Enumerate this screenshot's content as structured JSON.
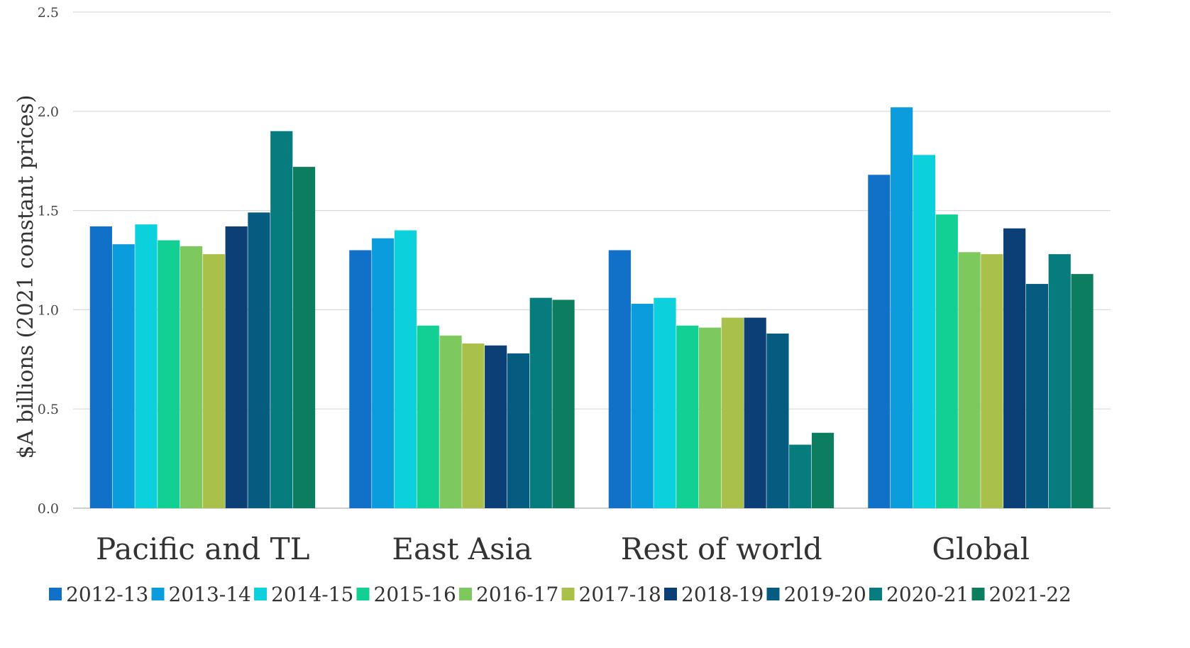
{
  "chart_data": {
    "type": "bar",
    "title": "",
    "xlabel": "",
    "ylabel": "$A billions (2021 constant prices)",
    "ylim": [
      0,
      2.5
    ],
    "yticks": [
      "0.0",
      "0.5",
      "1.0",
      "1.5",
      "2.0",
      "2.5"
    ],
    "grid": true,
    "legend_position": "bottom",
    "categories": [
      "Pacific and TL",
      "East Asia",
      "Rest of world",
      "Global"
    ],
    "series": [
      {
        "name": "2012-13",
        "color": "#1170c8",
        "values": [
          1.42,
          1.3,
          1.3,
          1.68
        ]
      },
      {
        "name": "2013-14",
        "color": "#0a9cdc",
        "values": [
          1.33,
          1.36,
          1.03,
          2.02
        ]
      },
      {
        "name": "2014-15",
        "color": "#0cd0dc",
        "values": [
          1.43,
          1.4,
          1.06,
          1.78
        ]
      },
      {
        "name": "2015-16",
        "color": "#12cf94",
        "values": [
          1.35,
          0.92,
          0.92,
          1.48
        ]
      },
      {
        "name": "2016-17",
        "color": "#7dc95e",
        "values": [
          1.32,
          0.87,
          0.91,
          1.29
        ]
      },
      {
        "name": "2017-18",
        "color": "#a9c14a",
        "values": [
          1.28,
          0.83,
          0.96,
          1.28
        ]
      },
      {
        "name": "2018-19",
        "color": "#0d3f77",
        "values": [
          1.42,
          0.82,
          0.96,
          1.41
        ]
      },
      {
        "name": "2019-20",
        "color": "#055c80",
        "values": [
          1.49,
          0.78,
          0.88,
          1.13
        ]
      },
      {
        "name": "2020-21",
        "color": "#077c7f",
        "values": [
          1.9,
          1.06,
          0.32,
          1.28
        ]
      },
      {
        "name": "2021-22",
        "color": "#0c7d5e",
        "values": [
          1.72,
          1.05,
          0.38,
          1.18
        ]
      }
    ]
  }
}
